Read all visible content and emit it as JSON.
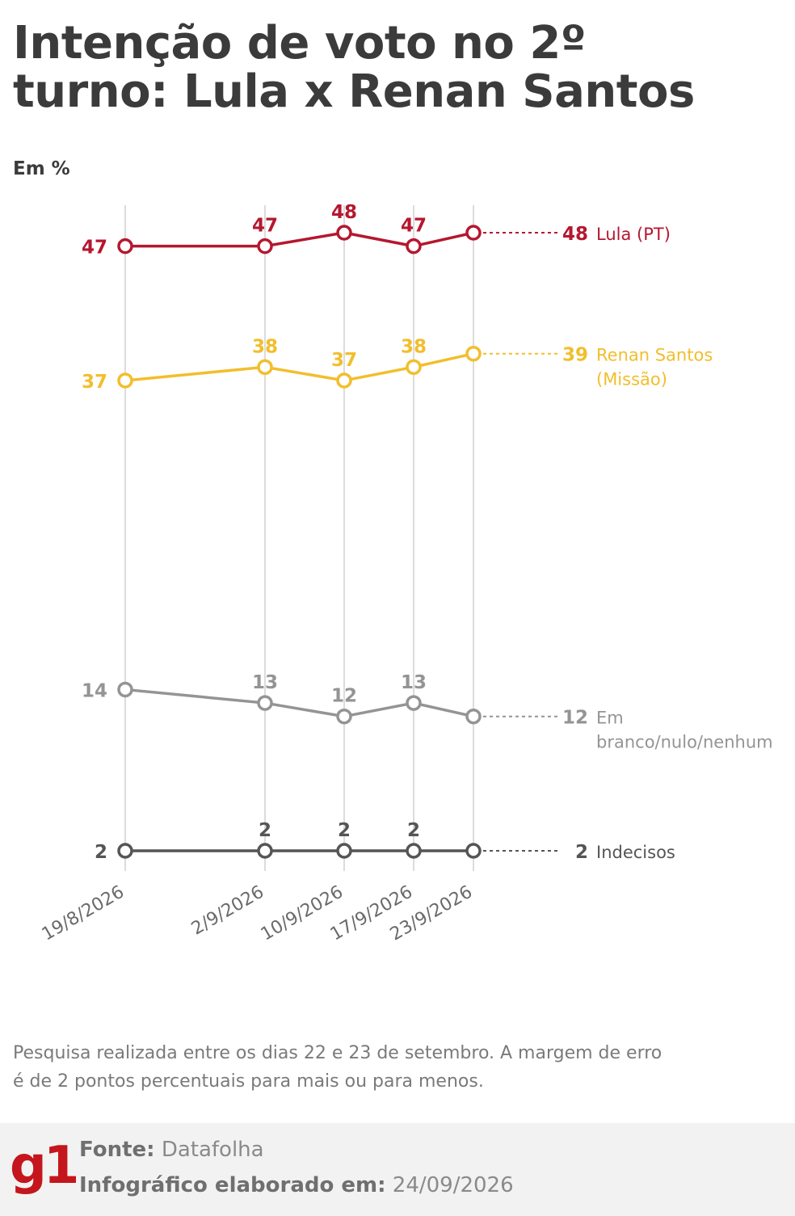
{
  "title": "Intenção de voto no 2º turno: Lula x Renan Santos",
  "unit": "Em %",
  "note": "Pesquisa realizada entre os dias 22 e 23 de setembro. A margem de erro é de 2 pontos percentuais para mais ou para menos.",
  "footer": {
    "logo": "g1",
    "source_label": "Fonte:",
    "source_value": "Datafolha",
    "date_label": "Infográfico elaborado em:",
    "date_value": "24/09/2026"
  },
  "chart_data": {
    "type": "line",
    "x": [
      "19/8/2026",
      "2/9/2026",
      "10/9/2026",
      "17/9/2026",
      "23/9/2026"
    ],
    "series": [
      {
        "name": "Lula (PT)",
        "values": [
          47,
          47,
          48,
          47,
          48
        ],
        "color": "#b5172f"
      },
      {
        "name": "Renan Santos (Missão)",
        "values": [
          37,
          38,
          37,
          38,
          39
        ],
        "color": "#f2be2c"
      },
      {
        "name": "Em branco/nulo/nenhum",
        "values": [
          14,
          13,
          12,
          13,
          12
        ],
        "color": "#949494"
      },
      {
        "name": "Indecisos",
        "values": [
          2,
          2,
          2,
          2,
          2
        ],
        "color": "#555555"
      }
    ],
    "grid": "vertical",
    "legend": "right"
  }
}
